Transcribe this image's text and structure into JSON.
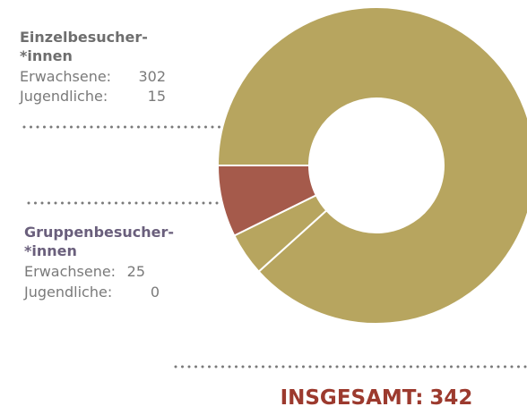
{
  "chart_data": {
    "type": "donut",
    "groups": [
      {
        "name_lines": [
          "Einzelbesucher-",
          "*innen"
        ],
        "heading_color": "#6e6e6e",
        "color": "#b7a55f",
        "items": [
          {
            "label": "Erwachsene:",
            "value": 302
          },
          {
            "label": "Jugendliche:",
            "value": 15
          }
        ]
      },
      {
        "name_lines": [
          "Gruppenbesucher-",
          "*innen"
        ],
        "heading_color": "#6a5f7c",
        "color": "#a55a4b",
        "items": [
          {
            "label": "Erwachsene:",
            "value": 25
          },
          {
            "label": "Jugendliche:",
            "value": 0
          }
        ]
      }
    ],
    "total_label": "INSGESAMT:",
    "total": 342,
    "total_color": "#9c3a2e"
  }
}
